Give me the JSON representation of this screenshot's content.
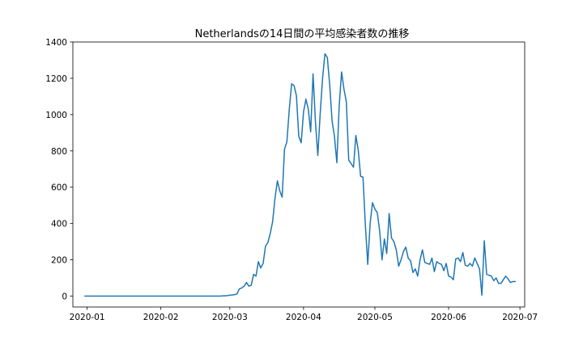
{
  "chart_data": {
    "type": "line",
    "title": "Netherlandsの14日間の平均感染者数の推移",
    "xlabel": "",
    "ylabel": "",
    "ylim": [
      -60,
      1400
    ],
    "xlim": [
      "2019-12-26",
      "2020-07-03"
    ],
    "grid": false,
    "x_ticks": [
      "2020-01",
      "2020-02",
      "2020-03",
      "2020-04",
      "2020-05",
      "2020-06",
      "2020-07"
    ],
    "y_ticks": [
      0,
      200,
      400,
      600,
      800,
      1000,
      1200,
      1400
    ],
    "series": [
      {
        "color": "#1f77b4",
        "points": [
          [
            "2019-12-31",
            0
          ],
          [
            "2020-01-15",
            0
          ],
          [
            "2020-02-01",
            0
          ],
          [
            "2020-02-15",
            0
          ],
          [
            "2020-02-26",
            0
          ],
          [
            "2020-02-27",
            1
          ],
          [
            "2020-02-28",
            2
          ],
          [
            "2020-02-29",
            3
          ],
          [
            "2020-03-01",
            5
          ],
          [
            "2020-03-02",
            6
          ],
          [
            "2020-03-03",
            8
          ],
          [
            "2020-03-04",
            12
          ],
          [
            "2020-03-05",
            40
          ],
          [
            "2020-03-06",
            45
          ],
          [
            "2020-03-07",
            55
          ],
          [
            "2020-03-08",
            75
          ],
          [
            "2020-03-09",
            55
          ],
          [
            "2020-03-10",
            60
          ],
          [
            "2020-03-11",
            120
          ],
          [
            "2020-03-12",
            110
          ],
          [
            "2020-03-13",
            190
          ],
          [
            "2020-03-14",
            155
          ],
          [
            "2020-03-15",
            180
          ],
          [
            "2020-03-16",
            275
          ],
          [
            "2020-03-17",
            295
          ],
          [
            "2020-03-18",
            345
          ],
          [
            "2020-03-19",
            410
          ],
          [
            "2020-03-20",
            540
          ],
          [
            "2020-03-21",
            635
          ],
          [
            "2020-03-22",
            580
          ],
          [
            "2020-03-23",
            545
          ],
          [
            "2020-03-24",
            810
          ],
          [
            "2020-03-25",
            850
          ],
          [
            "2020-03-26",
            1030
          ],
          [
            "2020-03-27",
            1170
          ],
          [
            "2020-03-28",
            1160
          ],
          [
            "2020-03-29",
            1105
          ],
          [
            "2020-03-30",
            880
          ],
          [
            "2020-03-31",
            845
          ],
          [
            "2020-04-01",
            1015
          ],
          [
            "2020-04-02",
            1085
          ],
          [
            "2020-04-03",
            1030
          ],
          [
            "2020-04-04",
            905
          ],
          [
            "2020-04-05",
            1225
          ],
          [
            "2020-04-06",
            960
          ],
          [
            "2020-04-07",
            775
          ],
          [
            "2020-04-08",
            1005
          ],
          [
            "2020-04-09",
            1200
          ],
          [
            "2020-04-10",
            1335
          ],
          [
            "2020-04-11",
            1315
          ],
          [
            "2020-04-12",
            1165
          ],
          [
            "2020-04-13",
            965
          ],
          [
            "2020-04-14",
            880
          ],
          [
            "2020-04-15",
            735
          ],
          [
            "2020-04-16",
            1050
          ],
          [
            "2020-04-17",
            1235
          ],
          [
            "2020-04-18",
            1140
          ],
          [
            "2020-04-19",
            1070
          ],
          [
            "2020-04-20",
            750
          ],
          [
            "2020-04-21",
            730
          ],
          [
            "2020-04-22",
            710
          ],
          [
            "2020-04-23",
            885
          ],
          [
            "2020-04-24",
            805
          ],
          [
            "2020-04-25",
            660
          ],
          [
            "2020-04-26",
            655
          ],
          [
            "2020-04-27",
            390
          ],
          [
            "2020-04-28",
            175
          ],
          [
            "2020-04-29",
            400
          ],
          [
            "2020-04-30",
            515
          ],
          [
            "2020-05-01",
            480
          ],
          [
            "2020-05-02",
            460
          ],
          [
            "2020-05-03",
            360
          ],
          [
            "2020-05-04",
            200
          ],
          [
            "2020-05-05",
            315
          ],
          [
            "2020-05-06",
            235
          ],
          [
            "2020-05-07",
            455
          ],
          [
            "2020-05-08",
            320
          ],
          [
            "2020-05-09",
            300
          ],
          [
            "2020-05-10",
            255
          ],
          [
            "2020-05-11",
            165
          ],
          [
            "2020-05-12",
            200
          ],
          [
            "2020-05-13",
            245
          ],
          [
            "2020-05-14",
            270
          ],
          [
            "2020-05-15",
            210
          ],
          [
            "2020-05-16",
            195
          ],
          [
            "2020-05-17",
            130
          ],
          [
            "2020-05-18",
            150
          ],
          [
            "2020-05-19",
            110
          ],
          [
            "2020-05-20",
            200
          ],
          [
            "2020-05-21",
            255
          ],
          [
            "2020-05-22",
            185
          ],
          [
            "2020-05-23",
            180
          ],
          [
            "2020-05-24",
            175
          ],
          [
            "2020-05-25",
            210
          ],
          [
            "2020-05-26",
            135
          ],
          [
            "2020-05-27",
            190
          ],
          [
            "2020-05-28",
            180
          ],
          [
            "2020-05-29",
            175
          ],
          [
            "2020-05-30",
            140
          ],
          [
            "2020-05-31",
            180
          ],
          [
            "2020-06-01",
            110
          ],
          [
            "2020-06-02",
            105
          ],
          [
            "2020-06-03",
            90
          ],
          [
            "2020-06-04",
            205
          ],
          [
            "2020-06-05",
            210
          ],
          [
            "2020-06-06",
            190
          ],
          [
            "2020-06-07",
            240
          ],
          [
            "2020-06-08",
            170
          ],
          [
            "2020-06-09",
            165
          ],
          [
            "2020-06-10",
            180
          ],
          [
            "2020-06-11",
            165
          ],
          [
            "2020-06-12",
            210
          ],
          [
            "2020-06-13",
            180
          ],
          [
            "2020-06-14",
            150
          ],
          [
            "2020-06-15",
            5
          ],
          [
            "2020-06-16",
            305
          ],
          [
            "2020-06-17",
            120
          ],
          [
            "2020-06-18",
            115
          ],
          [
            "2020-06-19",
            110
          ],
          [
            "2020-06-20",
            85
          ],
          [
            "2020-06-21",
            100
          ],
          [
            "2020-06-22",
            70
          ],
          [
            "2020-06-23",
            70
          ],
          [
            "2020-06-24",
            90
          ],
          [
            "2020-06-25",
            110
          ],
          [
            "2020-06-26",
            95
          ],
          [
            "2020-06-27",
            75
          ],
          [
            "2020-06-28",
            80
          ],
          [
            "2020-06-29",
            80
          ]
        ]
      }
    ]
  }
}
